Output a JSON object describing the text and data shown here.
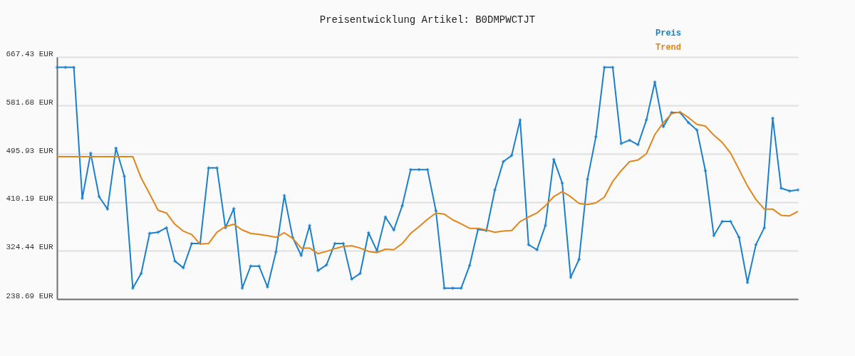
{
  "chart_data": {
    "type": "line",
    "title": "Preisentwicklung Artikel: B0DMPWCTJT",
    "categories": [
      null,
      null,
      null,
      null,
      null,
      null,
      null,
      null,
      null,
      null,
      null,
      null,
      null,
      null,
      null,
      null,
      null,
      null,
      null,
      null,
      null,
      null,
      null,
      null,
      null,
      null,
      null,
      null,
      null,
      null,
      null,
      null,
      null,
      null,
      null,
      null,
      null,
      null,
      null,
      null,
      null,
      null,
      null,
      null,
      null,
      null,
      null,
      null,
      null,
      null,
      null,
      null,
      null,
      null,
      null,
      null,
      null,
      null,
      null,
      null,
      null,
      null,
      null,
      null,
      null,
      null,
      null,
      null,
      null,
      null,
      null,
      null,
      null,
      null,
      null,
      null,
      null,
      null,
      null,
      null,
      null,
      null,
      null,
      null,
      null,
      null,
      null,
      null,
      null
    ],
    "series": [
      {
        "name": "Preis",
        "color": "#1a80cc",
        "marker": "cross",
        "values": [
          649,
          649,
          649,
          417,
          497,
          420,
          398,
          506,
          456,
          258,
          284,
          355,
          357,
          365,
          306,
          294,
          337,
          337,
          471,
          471,
          365,
          399,
          258,
          297,
          297,
          260,
          322,
          422,
          347,
          316,
          369,
          289,
          299,
          337,
          337,
          274,
          284,
          356,
          324,
          384,
          361,
          404,
          468,
          468,
          468,
          395,
          258,
          258,
          258,
          298,
          362,
          360,
          432,
          482,
          493,
          556,
          335,
          326,
          369,
          486,
          444,
          277,
          309,
          451,
          526,
          649,
          649,
          514,
          520,
          512,
          556,
          623,
          544,
          569,
          569,
          551,
          538,
          466,
          351,
          376,
          376,
          348,
          268,
          335,
          365,
          559,
          435,
          430,
          432
        ]
      },
      {
        "name": "Trend",
        "color": "#e0861a",
        "marker": "none",
        "values": [
          491,
          491,
          491,
          491,
          491,
          491,
          491,
          491,
          491,
          491,
          453,
          425,
          396,
          391,
          371,
          359,
          353,
          336,
          337,
          357,
          367,
          371,
          361,
          355,
          353,
          351,
          348,
          356,
          346,
          329,
          329,
          319,
          323,
          328,
          332,
          333,
          329,
          323,
          321,
          327,
          326,
          337,
          355,
          367,
          380,
          391,
          389,
          379,
          372,
          364,
          364,
          361,
          357,
          359,
          360,
          376,
          384,
          391,
          404,
          420,
          429,
          420,
          408,
          406,
          409,
          419,
          447,
          466,
          482,
          485,
          496,
          530,
          551,
          567,
          570,
          560,
          548,
          545,
          529,
          516,
          497,
          468,
          439,
          415,
          398,
          398,
          387,
          386,
          394
        ]
      }
    ],
    "ylim": [
      238.69,
      667.43
    ],
    "yticks": [
      {
        "value": 238.69,
        "label": "238.69 EUR"
      },
      {
        "value": 324.44,
        "label": "324.44 EUR"
      },
      {
        "value": 410.19,
        "label": "410.19 EUR"
      },
      {
        "value": 495.93,
        "label": "495.93 EUR"
      },
      {
        "value": 581.68,
        "label": "581.68 EUR"
      },
      {
        "value": 667.43,
        "label": "667.43 EUR"
      }
    ],
    "grid": "y",
    "legend": "top right",
    "line_style": "solid"
  }
}
